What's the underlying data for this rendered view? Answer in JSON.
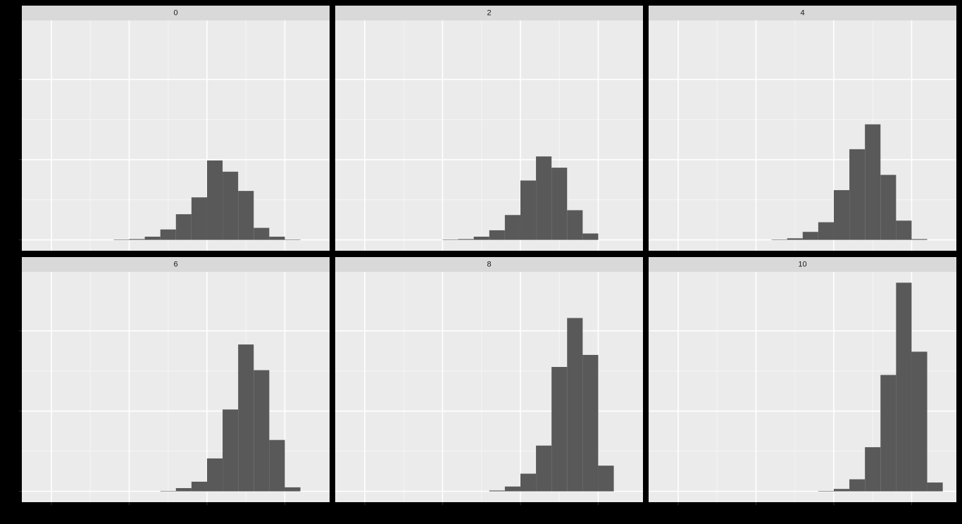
{
  "chart_data": [
    {
      "type": "histogram",
      "title": "0",
      "color": "#595959",
      "grid": true,
      "bins": [
        0.8,
        1.0,
        1.2,
        1.4,
        1.6,
        1.8,
        2.0,
        2.2,
        2.4,
        2.6,
        2.8,
        3.0,
        3.2
      ],
      "values": [
        0.5,
        1,
        4,
        13,
        32,
        53,
        99,
        85,
        61,
        15,
        4,
        0.5
      ],
      "xlim": [
        -0.38,
        3.575
      ],
      "xticks": [
        0,
        1,
        2,
        3
      ],
      "ylim": [
        -13.5,
        273.5
      ],
      "yticks": [
        0,
        100,
        200
      ]
    },
    {
      "type": "histogram",
      "title": "2",
      "color": "#595959",
      "grid": true,
      "bins": [
        1.0,
        1.2,
        1.4,
        1.6,
        1.8,
        2.0,
        2.2,
        2.4,
        2.6,
        2.8,
        3.0
      ],
      "values": [
        0.5,
        1,
        4,
        12,
        31,
        74,
        104,
        90,
        37,
        8
      ],
      "xlim": [
        -0.38,
        3.575
      ],
      "xticks": [
        0,
        1,
        2,
        3
      ],
      "ylim": [
        -13.5,
        273.5
      ],
      "yticks": [
        0,
        100,
        200
      ]
    },
    {
      "type": "histogram",
      "title": "4",
      "color": "#595959",
      "grid": true,
      "bins": [
        1.2,
        1.4,
        1.6,
        1.8,
        2.0,
        2.2,
        2.4,
        2.6,
        2.8,
        3.0,
        3.2
      ],
      "values": [
        0.5,
        2,
        10,
        22,
        62,
        113,
        144,
        81,
        24,
        1
      ],
      "xlim": [
        -0.38,
        3.575
      ],
      "xticks": [
        0,
        1,
        2,
        3
      ],
      "ylim": [
        -13.5,
        273.5
      ],
      "yticks": [
        0,
        100,
        200
      ]
    },
    {
      "type": "histogram",
      "title": "6",
      "color": "#595959",
      "grid": true,
      "bins": [
        1.4,
        1.6,
        1.8,
        2.0,
        2.2,
        2.4,
        2.6,
        2.8,
        3.0,
        3.2
      ],
      "values": [
        0.5,
        4,
        12,
        41,
        102,
        183,
        151,
        64,
        5
      ],
      "xlim": [
        -0.38,
        3.575
      ],
      "xticks": [
        0,
        1,
        2,
        3
      ],
      "ylim": [
        -13.5,
        273.5
      ],
      "yticks": [
        0,
        100,
        200
      ]
    },
    {
      "type": "histogram",
      "title": "8",
      "color": "#595959",
      "grid": true,
      "bins": [
        1.6,
        1.8,
        2.0,
        2.2,
        2.4,
        2.6,
        2.8,
        3.0,
        3.2
      ],
      "values": [
        1,
        6,
        22,
        57,
        155,
        216,
        170,
        32
      ],
      "xlim": [
        -0.38,
        3.575
      ],
      "xticks": [
        0,
        1,
        2,
        3
      ],
      "ylim": [
        -13.5,
        273.5
      ],
      "yticks": [
        0,
        100,
        200
      ]
    },
    {
      "type": "histogram",
      "title": "10",
      "color": "#595959",
      "grid": true,
      "bins": [
        1.8,
        2.0,
        2.2,
        2.4,
        2.6,
        2.8,
        3.0,
        3.2,
        3.4
      ],
      "values": [
        0.5,
        3,
        15,
        55,
        145,
        260,
        174,
        11
      ],
      "xlim": [
        -0.38,
        3.575
      ],
      "xticks": [
        0,
        1,
        2,
        3
      ],
      "ylim": [
        -13.5,
        273.5
      ],
      "yticks": [
        0,
        100,
        200
      ]
    }
  ]
}
